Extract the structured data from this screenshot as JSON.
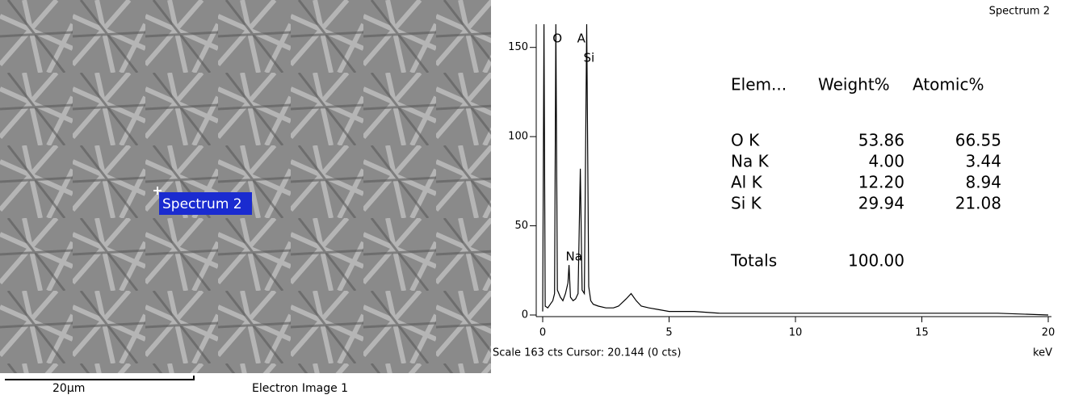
{
  "image_panel": {
    "spot_label": "Spectrum 2",
    "scale_label": "20µm",
    "caption": "Electron Image 1"
  },
  "chart_data": {
    "type": "line",
    "title": "Spectrum 2",
    "x": [
      0,
      0.05,
      0.1,
      0.2,
      0.3,
      0.4,
      0.47,
      0.52,
      0.58,
      0.7,
      0.8,
      0.9,
      1.0,
      1.04,
      1.1,
      1.2,
      1.3,
      1.4,
      1.49,
      1.56,
      1.65,
      1.74,
      1.82,
      1.9,
      2.0,
      2.2,
      2.5,
      2.8,
      3.0,
      3.3,
      3.5,
      3.7,
      3.9,
      4.2,
      4.6,
      5.0,
      6.0,
      7.0,
      8.0,
      10.0,
      12.0,
      14.0,
      16.0,
      18.0,
      20.0
    ],
    "values": [
      2,
      163,
      5,
      4,
      6,
      8,
      12,
      163,
      14,
      10,
      8,
      12,
      18,
      28,
      10,
      8,
      9,
      12,
      82,
      14,
      12,
      163,
      16,
      8,
      6,
      5,
      4,
      4,
      5,
      9,
      12,
      8,
      5,
      4,
      3,
      2,
      2,
      1,
      1,
      1,
      1,
      1,
      1,
      1,
      0
    ],
    "color": "#000000",
    "xlim": [
      0,
      20
    ],
    "xticks": [
      0,
      5,
      10,
      15,
      20
    ],
    "x_unit": "keV",
    "ylim": [
      0,
      163
    ],
    "yticks": [
      0,
      50,
      100,
      150
    ],
    "peak_labels": [
      {
        "text": "O",
        "x": 0.52
      },
      {
        "text": "A",
        "x": 1.49
      },
      {
        "text": "Si",
        "x": 1.74
      },
      {
        "text": "Na",
        "x": 1.04
      }
    ],
    "footer": "Scale 163 cts Cursor: 20.144  (0 cts)"
  },
  "table": {
    "header": [
      "Elem...",
      "Weight%",
      "Atomic%"
    ],
    "rows": [
      [
        "O K",
        "53.86",
        "66.55"
      ],
      [
        "Na K",
        "4.00",
        "3.44"
      ],
      [
        "Al K",
        "12.20",
        "8.94"
      ],
      [
        "Si K",
        "29.94",
        "21.08"
      ]
    ],
    "totals": [
      "Totals",
      "100.00"
    ]
  }
}
